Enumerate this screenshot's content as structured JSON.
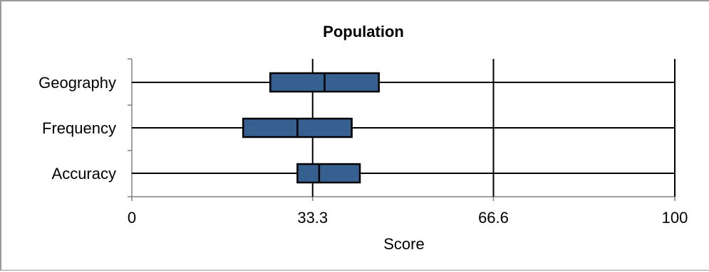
{
  "chart_data": {
    "type": "boxplot",
    "title": "Population",
    "xlabel": "Score",
    "ylabel": "",
    "xlim": [
      0,
      100
    ],
    "xticks": [
      "0",
      "33.3",
      "66.6",
      "100"
    ],
    "xtick_values": [
      0,
      33.3,
      66.6,
      100
    ],
    "grid": "vertical lines at x ticks",
    "legend": "none",
    "categories": [
      "Geography",
      "Frequency",
      "Accuracy"
    ],
    "boxes": [
      {
        "category": "Geography",
        "min": 0,
        "q1": 25.5,
        "median": 35.5,
        "q3": 45.5,
        "max": 100
      },
      {
        "category": "Frequency",
        "min": 0,
        "q1": 20.5,
        "median": 30.5,
        "q3": 40.5,
        "max": 100
      },
      {
        "category": "Accuracy",
        "min": 0,
        "q1": 30.5,
        "median": 34.5,
        "q3": 42.0,
        "max": 100
      }
    ],
    "colors": {
      "box_fill": "#35608f",
      "box_stroke": "#000000",
      "line": "#000000"
    }
  }
}
